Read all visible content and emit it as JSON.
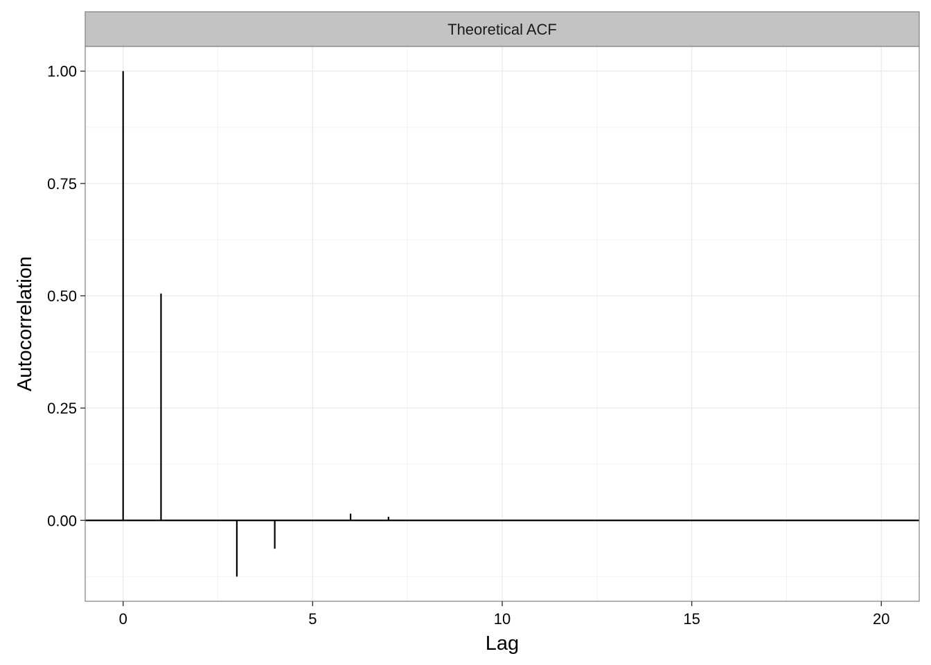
{
  "chart_data": {
    "type": "bar",
    "facet_label": "Theoretical ACF",
    "xlabel": "Lag",
    "ylabel": "Autocorrelation",
    "x": [
      0,
      1,
      2,
      3,
      4,
      5,
      6,
      7,
      8,
      9,
      10,
      11,
      12,
      13,
      14,
      15,
      16,
      17,
      18,
      19,
      20
    ],
    "values": [
      1.0,
      0.505,
      0.001,
      -0.125,
      -0.063,
      0.0,
      0.015,
      0.008,
      0.001,
      0.0,
      0.0,
      0.0,
      0.0,
      0.0,
      0.0,
      0.0,
      0.0,
      0.0,
      0.0,
      0.0,
      0.0
    ],
    "xlim": [
      -1,
      21
    ],
    "ylim": [
      -0.18,
      1.055
    ],
    "x_ticks": [
      0,
      5,
      10,
      15,
      20
    ],
    "x_tick_labels": [
      "0",
      "5",
      "10",
      "15",
      "20"
    ],
    "y_ticks": [
      0.0,
      0.25,
      0.5,
      0.75,
      1.0
    ],
    "y_tick_labels": [
      "0.00",
      "0.25",
      "0.50",
      "0.75",
      "1.00"
    ],
    "hline": 0,
    "grid": true,
    "legend": "none"
  }
}
